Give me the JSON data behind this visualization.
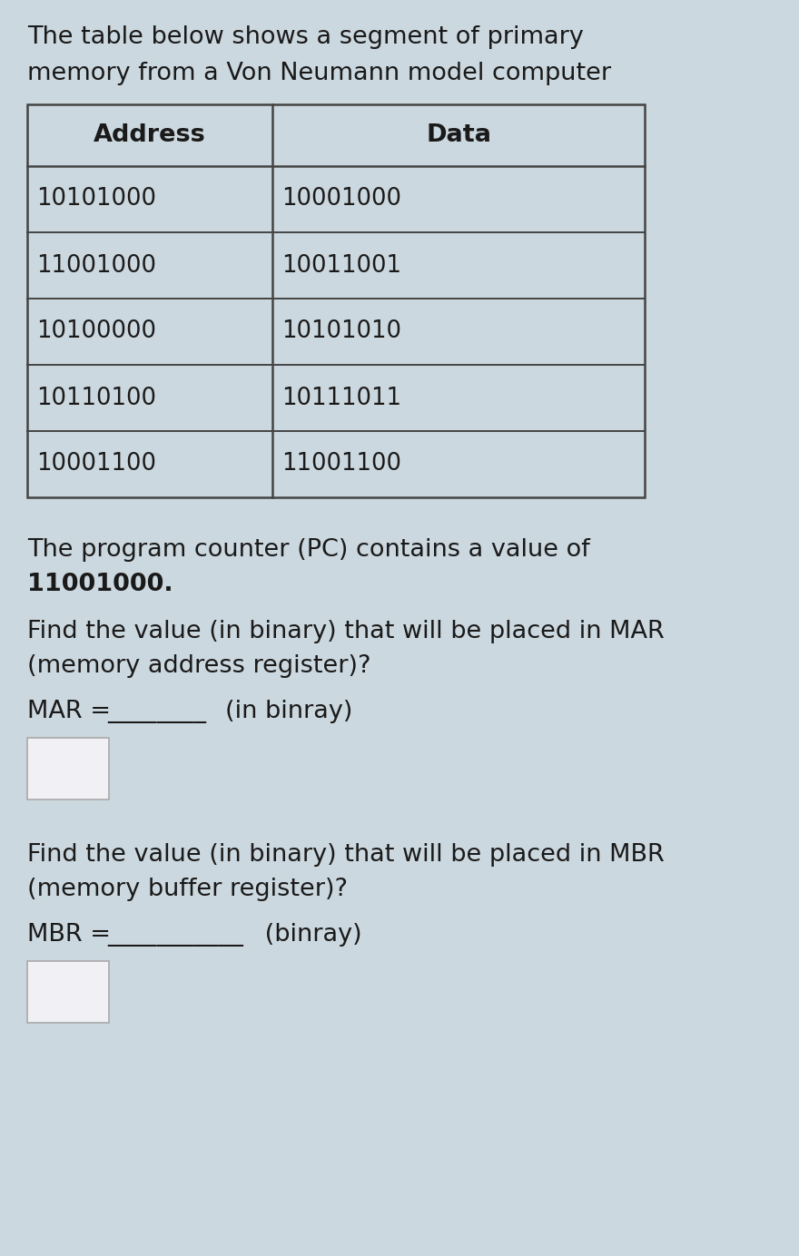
{
  "bg_color": "#ccd8df",
  "title_line1": "The table below shows a segment of primary",
  "title_line2": "memory from a Von Neumann model computer",
  "table_addresses": [
    "10101000",
    "11001000",
    "10100000",
    "10110100",
    "10001100"
  ],
  "table_data": [
    "10001000",
    "10011001",
    "10101010",
    "10111011",
    "11001100"
  ],
  "col_headers": [
    "Address",
    "Data"
  ],
  "pc_line1": "The program counter (PC) contains a value of",
  "pc_value": "11001000.",
  "mar_q1": "Find the value (in binary) that will be placed in MAR",
  "mar_q2": "(memory address register)?",
  "mar_label": "MAR = ",
  "mar_underline": "________",
  "mar_suffix": "(in binray)",
  "mbr_q1": "Find the value (in binary) that will be placed in MBR",
  "mbr_q2": "(memory buffer register)?",
  "mbr_label": "MBR = ",
  "mbr_underline": "___________",
  "mbr_suffix": " (binray)",
  "text_color": "#1a1a1a",
  "table_line_color": "#444444",
  "table_bg": "#ccd8df",
  "white_box_color": "#f0f0f5",
  "font_size_title": 19.5,
  "font_size_table_header": 19.5,
  "font_size_table_data": 18.5,
  "font_size_body": 19.5
}
